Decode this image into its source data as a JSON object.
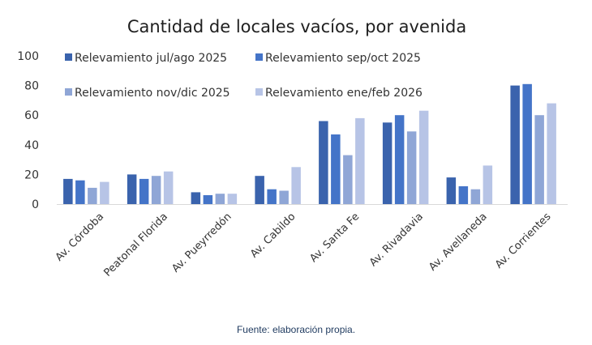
{
  "chart_data": {
    "type": "bar",
    "title": "Cantidad de locales vacíos, por avenida",
    "xlabel": "",
    "ylabel": "",
    "ylim": [
      0,
      100
    ],
    "yticks": [
      0,
      20,
      40,
      60,
      80,
      100
    ],
    "grid": false,
    "legend_position": "top",
    "categories": [
      "Av. Córdoba",
      "Peatonal Florida",
      "Av. Pueyrredón",
      "Av. Cabildo",
      "Av. Santa Fe",
      "Av. Rivadavia",
      "Av. Avellaneda",
      "Av. Corrientes"
    ],
    "series": [
      {
        "name": "Relevamiento jul/ago 2025",
        "color": "#3a63ad",
        "values": [
          17,
          20,
          8,
          19,
          56,
          55,
          18,
          80
        ]
      },
      {
        "name": "Relevamiento sep/oct 2025",
        "color": "#4474c8",
        "values": [
          16,
          17,
          6,
          10,
          47,
          60,
          12,
          81
        ]
      },
      {
        "name": "Relevamiento nov/dic 2025",
        "color": "#8fa6d6",
        "values": [
          11,
          19,
          7,
          9,
          33,
          49,
          10,
          60
        ]
      },
      {
        "name": "Relevamiento ene/feb 2026",
        "color": "#b7c4e6",
        "values": [
          15,
          22,
          7,
          25,
          58,
          63,
          26,
          68
        ]
      }
    ]
  },
  "footer": {
    "source": "Fuente: elaboración propia."
  }
}
